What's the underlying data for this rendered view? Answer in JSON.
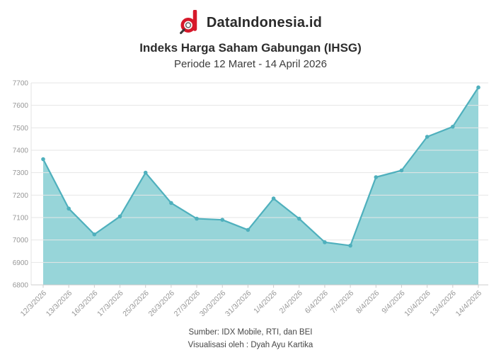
{
  "header": {
    "brand": "DataIndonesia.id",
    "title": "Indeks Harga Saham Gabungan (IHSG)",
    "subtitle": "Periode 12 Maret - 14 April 2026"
  },
  "footer": {
    "source_line": "Sumber: IDX Mobile, RTI, dan BEI",
    "credit_line": "Visualisasi oleh : Dyah Ayu Kartika"
  },
  "colors": {
    "brand_red": "#d6182a",
    "handle_dark": "#3a3a3a",
    "line": "#4fb0bd",
    "fill": "#97d5d9",
    "grid": "#e6e6e6",
    "axis": "#cccccc",
    "tick_label": "#979797"
  },
  "chart_data": {
    "type": "area",
    "title": "Indeks Harga Saham Gabungan (IHSG)",
    "subtitle": "Periode 12 Maret - 14 April 2026",
    "x_labels": [
      "12/3/2026",
      "13/3/2026",
      "16/3/2026",
      "17/3/2026",
      "25/3/2026",
      "26/3/2026",
      "27/3/2026",
      "30/3/2026",
      "31/3/2026",
      "1/4/2026",
      "2/4/2026",
      "6/4/2026",
      "7/4/2026",
      "8/4/2026",
      "9/4/2026",
      "10/4/2026",
      "13/4/2026",
      "14/4/2026"
    ],
    "values": [
      7360,
      7140,
      7025,
      7105,
      7300,
      7165,
      7095,
      7090,
      7045,
      7185,
      7095,
      6990,
      6975,
      7280,
      7310,
      7460,
      7505,
      7680
    ],
    "ylim": [
      6800,
      7700
    ],
    "ytick_step": 100,
    "yticks": [
      6800,
      6900,
      7000,
      7100,
      7200,
      7300,
      7400,
      7500,
      7600,
      7700
    ],
    "grid": "horizontal",
    "legend": "none",
    "marker": "circle",
    "xlabel": "",
    "ylabel": ""
  }
}
